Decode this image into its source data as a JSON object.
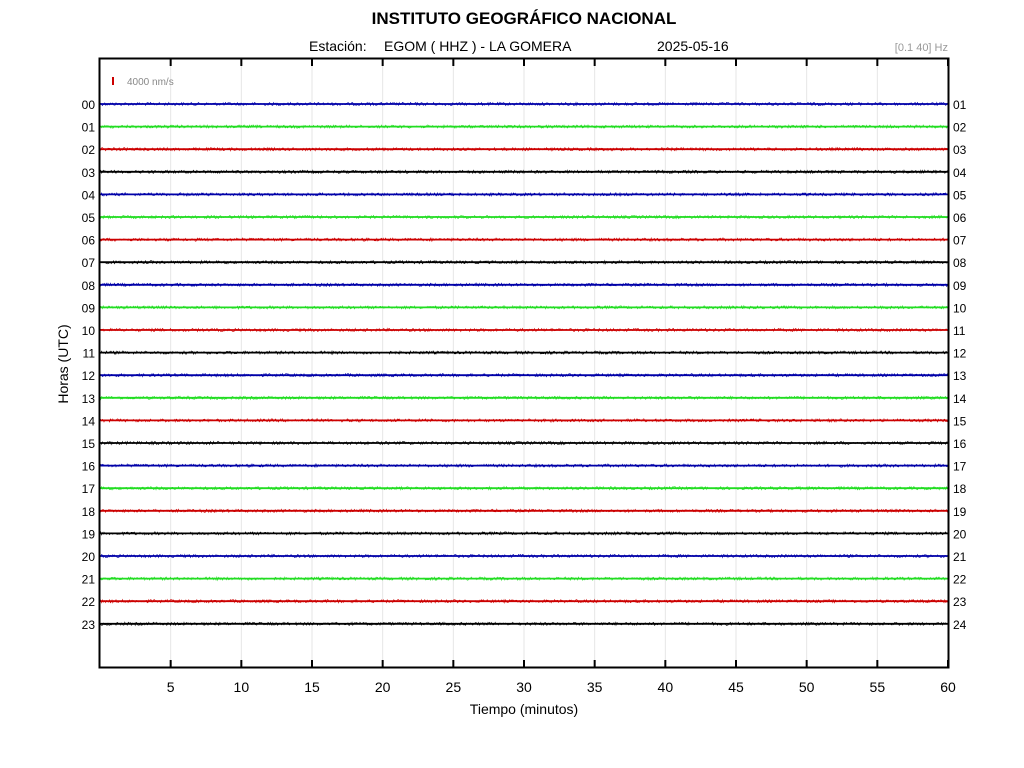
{
  "header": {
    "title": "INSTITUTO GEOGRÁFICO NACIONAL",
    "station_label": "Estación:",
    "station": "EGOM ( HHZ ) - LA GOMERA",
    "date": "2025-05-16",
    "filter": "[0.1 40] Hz"
  },
  "scale_label": "4000 nm/s",
  "colors": {
    "blue": "#0000a8",
    "green": "#22dd22",
    "red": "#cc0000",
    "black": "#000000",
    "scale_bar": "#cc0000",
    "grid": "#e6e6e6",
    "filter_text": "#999999"
  },
  "chart_data": {
    "type": "line",
    "title": "INSTITUTO GEOGRÁFICO NACIONAL",
    "xlabel": "Tiempo (minutos)",
    "ylabel": "Horas (UTC)",
    "xlim": [
      0,
      60
    ],
    "x_ticks": [
      5,
      10,
      15,
      20,
      25,
      30,
      35,
      40,
      45,
      50,
      55,
      60
    ],
    "grid": true,
    "left_labels": [
      "00",
      "01",
      "02",
      "03",
      "04",
      "05",
      "06",
      "07",
      "08",
      "09",
      "10",
      "11",
      "12",
      "13",
      "14",
      "15",
      "16",
      "17",
      "18",
      "19",
      "20",
      "21",
      "22",
      "23"
    ],
    "right_labels": [
      "01",
      "02",
      "03",
      "04",
      "05",
      "06",
      "07",
      "08",
      "09",
      "10",
      "11",
      "12",
      "13",
      "14",
      "15",
      "16",
      "17",
      "18",
      "19",
      "20",
      "21",
      "22",
      "23",
      "24"
    ],
    "trace_colors": [
      "blue",
      "green",
      "red",
      "black",
      "blue",
      "green",
      "red",
      "black",
      "blue",
      "green",
      "red",
      "black",
      "blue",
      "green",
      "red",
      "black",
      "blue",
      "green",
      "red",
      "black",
      "blue",
      "green",
      "red",
      "black"
    ]
  }
}
